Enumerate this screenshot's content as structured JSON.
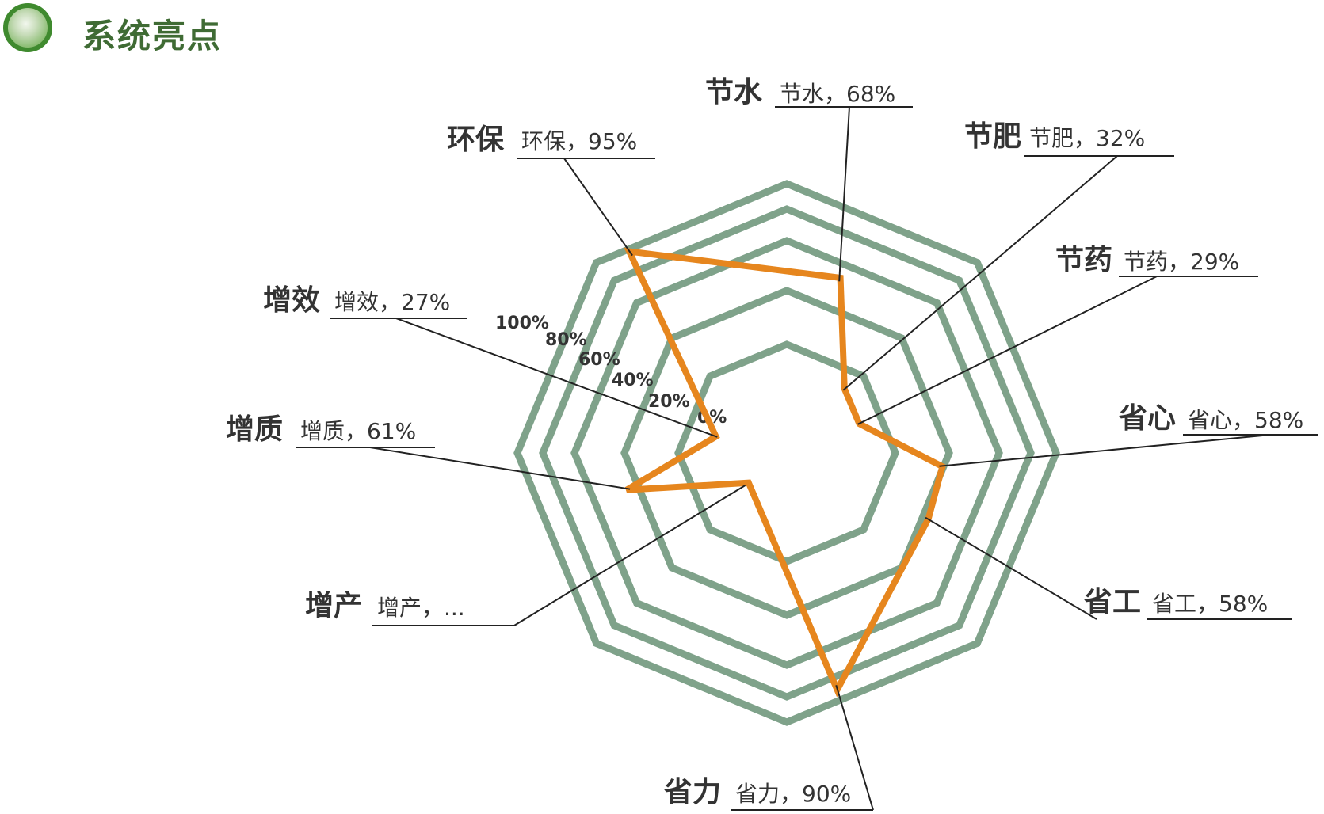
{
  "header": {
    "title": "系统亮点",
    "icon": "green-bullet-icon"
  },
  "colors": {
    "grid": "#7fa28a",
    "series": "#e6861e",
    "leader": "#222222",
    "title": "#3f6b34"
  },
  "chart_data": {
    "type": "radar",
    "axis_ticks": [
      "0%",
      "20%",
      "40%",
      "60%",
      "80%",
      "100%"
    ],
    "axes": [
      {
        "name": "节水",
        "label": "节水，68%",
        "value": 68
      },
      {
        "name": "节肥",
        "label": "节肥，32%",
        "value": 32
      },
      {
        "name": "节药",
        "label": "节药，29%",
        "value": 29
      },
      {
        "name": "省心",
        "label": "省心，58%",
        "value": 58
      },
      {
        "name": "省工",
        "label": "省工，58%",
        "value": 58
      },
      {
        "name": "省力",
        "label": "省力，90%",
        "value": 90
      },
      {
        "name": "增产",
        "label": "增产，...",
        "value": 18
      },
      {
        "name": "增质",
        "label": "增质，61%",
        "value": 61
      },
      {
        "name": "增效",
        "label": "增效，27%",
        "value": 27
      },
      {
        "name": "环保",
        "label": "环保，95%",
        "value": 95
      }
    ]
  }
}
